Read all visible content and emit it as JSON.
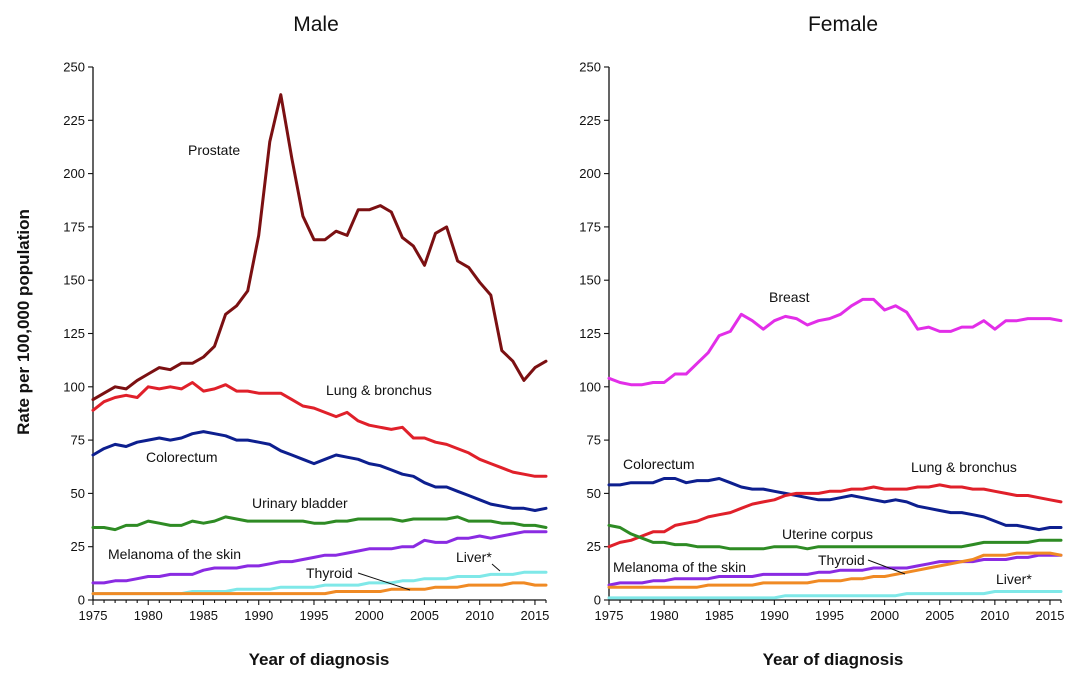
{
  "ylabel": "Rate per 100,000 population",
  "chart_data": [
    {
      "type": "line",
      "title": "Male",
      "xlabel": "Year of diagnosis",
      "ylabel": "Rate per 100,000 population",
      "xlim": [
        1975,
        2016
      ],
      "ylim": [
        0,
        250
      ],
      "xticks": [
        1975,
        1980,
        1985,
        1990,
        1995,
        2000,
        2005,
        2010,
        2015
      ],
      "yticks": [
        0,
        25,
        50,
        75,
        100,
        125,
        150,
        175,
        200,
        225,
        250
      ],
      "grid": false,
      "legend": "none",
      "x": [
        1975,
        1976,
        1977,
        1978,
        1979,
        1980,
        1981,
        1982,
        1983,
        1984,
        1985,
        1986,
        1987,
        1988,
        1989,
        1990,
        1991,
        1992,
        1993,
        1994,
        1995,
        1996,
        1997,
        1998,
        1999,
        2000,
        2001,
        2002,
        2003,
        2004,
        2005,
        2006,
        2007,
        2008,
        2009,
        2010,
        2011,
        2012,
        2013,
        2014,
        2015,
        2016
      ],
      "series": [
        {
          "name": "Prostate",
          "color": "#7b1012",
          "values": [
            94,
            97,
            100,
            99,
            103,
            106,
            109,
            108,
            111,
            111,
            114,
            119,
            134,
            138,
            145,
            171,
            215,
            237,
            207,
            180,
            169,
            169,
            173,
            171,
            183,
            183,
            185,
            182,
            170,
            166,
            157,
            172,
            175,
            159,
            156,
            149,
            143,
            117,
            112,
            103,
            109,
            112
          ]
        },
        {
          "name": "Lung & bronchus",
          "color": "#e0202a",
          "values": [
            89,
            93,
            95,
            96,
            95,
            100,
            99,
            100,
            99,
            102,
            98,
            99,
            101,
            98,
            98,
            97,
            97,
            97,
            94,
            91,
            90,
            88,
            86,
            88,
            84,
            82,
            81,
            80,
            81,
            76,
            76,
            74,
            73,
            71,
            69,
            66,
            64,
            62,
            60,
            59,
            58,
            58
          ]
        },
        {
          "name": "Colorectum",
          "color": "#0d1f8f",
          "values": [
            68,
            71,
            73,
            72,
            74,
            75,
            76,
            75,
            76,
            78,
            79,
            78,
            77,
            75,
            75,
            74,
            73,
            70,
            68,
            66,
            64,
            66,
            68,
            67,
            66,
            64,
            63,
            61,
            59,
            58,
            55,
            53,
            53,
            51,
            49,
            47,
            45,
            44,
            43,
            43,
            42,
            43
          ]
        },
        {
          "name": "Urinary bladder",
          "color": "#2e8b24",
          "values": [
            34,
            34,
            33,
            35,
            35,
            37,
            36,
            35,
            35,
            37,
            36,
            37,
            39,
            38,
            37,
            37,
            37,
            37,
            37,
            37,
            36,
            36,
            37,
            37,
            38,
            38,
            38,
            38,
            37,
            38,
            38,
            38,
            38,
            39,
            37,
            37,
            37,
            36,
            36,
            35,
            35,
            34
          ]
        },
        {
          "name": "Melanoma of the skin",
          "color": "#8a2be2",
          "values": [
            8,
            8,
            9,
            9,
            10,
            11,
            11,
            12,
            12,
            12,
            14,
            15,
            15,
            15,
            16,
            16,
            17,
            18,
            18,
            19,
            20,
            21,
            21,
            22,
            23,
            24,
            24,
            24,
            25,
            25,
            28,
            27,
            27,
            29,
            29,
            30,
            29,
            30,
            31,
            32,
            32,
            32
          ]
        },
        {
          "name": "Liver*",
          "color": "#7fe8e8",
          "values": [
            3,
            3,
            3,
            3,
            3,
            3,
            3,
            3,
            3,
            4,
            4,
            4,
            4,
            5,
            5,
            5,
            5,
            6,
            6,
            6,
            6,
            7,
            7,
            7,
            7,
            8,
            8,
            8,
            9,
            9,
            10,
            10,
            10,
            11,
            11,
            11,
            12,
            12,
            12,
            13,
            13,
            13
          ]
        },
        {
          "name": "Thyroid",
          "color": "#f08a24",
          "values": [
            3,
            3,
            3,
            3,
            3,
            3,
            3,
            3,
            3,
            3,
            3,
            3,
            3,
            3,
            3,
            3,
            3,
            3,
            3,
            3,
            3,
            3,
            4,
            4,
            4,
            4,
            4,
            5,
            5,
            5,
            5,
            6,
            6,
            6,
            7,
            7,
            7,
            7,
            8,
            8,
            7,
            7
          ]
        }
      ]
    },
    {
      "type": "line",
      "title": "Female",
      "xlabel": "Year of diagnosis",
      "ylabel": "",
      "xlim": [
        1975,
        2016
      ],
      "ylim": [
        0,
        250
      ],
      "xticks": [
        1975,
        1980,
        1985,
        1990,
        1995,
        2000,
        2005,
        2010,
        2015
      ],
      "yticks": [
        0,
        25,
        50,
        75,
        100,
        125,
        150,
        175,
        200,
        225,
        250
      ],
      "grid": false,
      "legend": "none",
      "x": [
        1975,
        1976,
        1977,
        1978,
        1979,
        1980,
        1981,
        1982,
        1983,
        1984,
        1985,
        1986,
        1987,
        1988,
        1989,
        1990,
        1991,
        1992,
        1993,
        1994,
        1995,
        1996,
        1997,
        1998,
        1999,
        2000,
        2001,
        2002,
        2003,
        2004,
        2005,
        2006,
        2007,
        2008,
        2009,
        2010,
        2011,
        2012,
        2013,
        2014,
        2015,
        2016
      ],
      "series": [
        {
          "name": "Breast",
          "color": "#e22ee8",
          "values": [
            104,
            102,
            101,
            101,
            102,
            102,
            106,
            106,
            111,
            116,
            124,
            126,
            134,
            131,
            127,
            131,
            133,
            132,
            129,
            131,
            132,
            134,
            138,
            141,
            141,
            136,
            138,
            135,
            127,
            128,
            126,
            126,
            128,
            128,
            131,
            127,
            131,
            131,
            132,
            132,
            132,
            131
          ]
        },
        {
          "name": "Colorectum",
          "color": "#0d1f8f",
          "values": [
            54,
            54,
            55,
            55,
            55,
            57,
            57,
            55,
            56,
            56,
            57,
            55,
            53,
            52,
            52,
            51,
            50,
            49,
            48,
            47,
            47,
            48,
            49,
            48,
            47,
            46,
            47,
            46,
            44,
            43,
            42,
            41,
            41,
            40,
            39,
            37,
            35,
            35,
            34,
            33,
            34,
            34
          ]
        },
        {
          "name": "Lung & bronchus",
          "color": "#e0202a",
          "values": [
            25,
            27,
            28,
            30,
            32,
            32,
            35,
            36,
            37,
            39,
            40,
            41,
            43,
            45,
            46,
            47,
            49,
            50,
            50,
            50,
            51,
            51,
            52,
            52,
            53,
            52,
            52,
            52,
            53,
            53,
            54,
            53,
            53,
            52,
            52,
            51,
            50,
            49,
            49,
            48,
            47,
            46
          ]
        },
        {
          "name": "Uterine corpus",
          "color": "#2e8b24",
          "values": [
            35,
            34,
            31,
            29,
            27,
            27,
            26,
            26,
            25,
            25,
            25,
            24,
            24,
            24,
            24,
            25,
            25,
            25,
            24,
            25,
            25,
            25,
            25,
            25,
            25,
            25,
            25,
            25,
            25,
            25,
            25,
            25,
            25,
            26,
            27,
            27,
            27,
            27,
            27,
            28,
            28,
            28
          ]
        },
        {
          "name": "Melanoma of the skin",
          "color": "#8a2be2",
          "values": [
            7,
            8,
            8,
            8,
            9,
            9,
            10,
            10,
            10,
            10,
            11,
            11,
            11,
            11,
            12,
            12,
            12,
            12,
            12,
            13,
            13,
            14,
            14,
            14,
            15,
            15,
            15,
            15,
            16,
            17,
            18,
            18,
            18,
            18,
            19,
            19,
            19,
            20,
            20,
            21,
            21,
            21
          ]
        },
        {
          "name": "Thyroid",
          "color": "#f08a24",
          "values": [
            6,
            6,
            6,
            6,
            6,
            6,
            6,
            6,
            6,
            7,
            7,
            7,
            7,
            7,
            8,
            8,
            8,
            8,
            8,
            9,
            9,
            9,
            10,
            10,
            11,
            11,
            12,
            13,
            14,
            15,
            16,
            17,
            18,
            19,
            21,
            21,
            21,
            22,
            22,
            22,
            22,
            21
          ]
        },
        {
          "name": "Liver*",
          "color": "#7fe8e8",
          "values": [
            1,
            1,
            1,
            1,
            1,
            1,
            1,
            1,
            1,
            1,
            1,
            1,
            1,
            1,
            1,
            1,
            2,
            2,
            2,
            2,
            2,
            2,
            2,
            2,
            2,
            2,
            2,
            3,
            3,
            3,
            3,
            3,
            3,
            3,
            3,
            4,
            4,
            4,
            4,
            4,
            4,
            4
          ]
        }
      ]
    }
  ]
}
